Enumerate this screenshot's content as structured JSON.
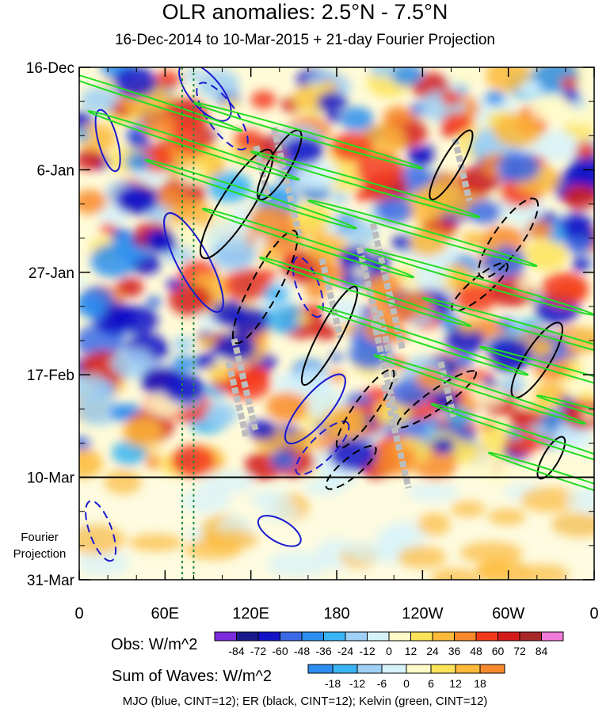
{
  "title": "OLR anomalies: 2.5°N - 7.5°N",
  "subtitle": "16-Dec-2014 to 10-Mar-2015 + 21-day Fourier Projection",
  "fourier_label": "Fourier\nProjection",
  "fourier_label_line1": "Fourier",
  "fourier_label_line2": "Projection",
  "footer": "MJO (blue, CINT=12); ER (black, CINT=12); Kelvin (green, CINT=12)",
  "colorbar_obs": {
    "label": "Obs: W/m^2",
    "ticks": [
      "-84",
      "-72",
      "-60",
      "-48",
      "-36",
      "-24",
      "-12",
      "0",
      "12",
      "24",
      "36",
      "48",
      "60",
      "72",
      "84"
    ],
    "colors": [
      "#7b2cdc",
      "#1a1a8c",
      "#1212c8",
      "#3a6ae6",
      "#2c8ef0",
      "#3ab4f5",
      "#9fd0f5",
      "#d6f2fb",
      "#fffbc8",
      "#fde35a",
      "#fcb93a",
      "#f8892c",
      "#f53a1c",
      "#d41a1a",
      "#a8282a",
      "#f27ad8"
    ]
  },
  "colorbar_waves": {
    "label": "Sum of Waves: W/m^2",
    "ticks": [
      "-18",
      "-12",
      "-6",
      "0",
      "6",
      "12",
      "18"
    ],
    "colors": [
      "#2c8ef0",
      "#3ab4f5",
      "#9fd0f5",
      "#d6f2fb",
      "#fffbc8",
      "#fde35a",
      "#fcb93a",
      "#f8892c"
    ]
  },
  "chart_data": {
    "type": "heatmap",
    "title": "OLR anomalies: 2.5°N - 7.5°N",
    "subtitle": "16-Dec-2014 to 10-Mar-2015 + 21-day Fourier Projection",
    "x_ticks": [
      "0",
      "60E",
      "120E",
      "180",
      "120W",
      "60W",
      "0"
    ],
    "x_tick_longitudes": [
      0,
      60,
      120,
      180,
      240,
      300,
      360
    ],
    "xlim": [
      0,
      360
    ],
    "y_ticks": [
      "16-Dec",
      "6-Jan",
      "27-Jan",
      "17-Feb",
      "10-Mar",
      "31-Mar"
    ],
    "y_tick_days": [
      0,
      21,
      42,
      63,
      84,
      105
    ],
    "ylim_days": [
      0,
      105
    ],
    "observation_end_day": 84,
    "projection_start_label": "10-Mar",
    "reference_longitudes_dotted": [
      72,
      80
    ],
    "contour_series": [
      {
        "name": "MJO",
        "color": "#1a1ad0",
        "cint": 12
      },
      {
        "name": "ER",
        "color": "#000000",
        "cint": 12
      },
      {
        "name": "Kelvin",
        "color": "#22dd22",
        "cint": 12
      }
    ],
    "grid": false
  }
}
